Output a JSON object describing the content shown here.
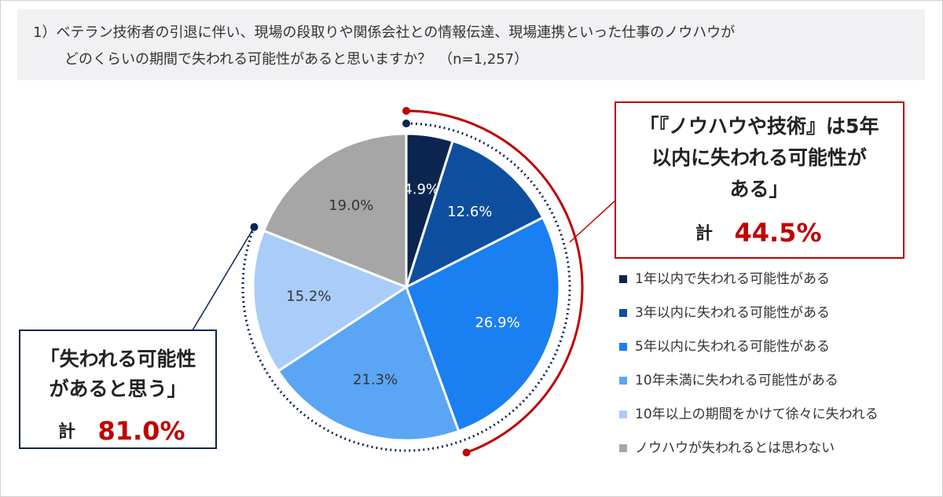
{
  "chart_data": {
    "type": "pie",
    "title": [
      "1）ベテラン技術者の引退に伴い、現場の段取りや関係会社との情報伝達、現場連携といった仕事のノウハウが",
      "どのくらいの期間で失われる可能性があると思いますか？　（n=1,257）"
    ],
    "categories": [
      "1年以内で失われる可能性がある",
      "3年以内に失われる可能性がある",
      "5年以内に失われる可能性がある",
      "10年未満に失われる可能性がある",
      "10年以上の期間をかけて徐々に失われる",
      "ノウハウが失われるとは思わない"
    ],
    "values": [
      4.9,
      12.6,
      26.9,
      21.3,
      15.2,
      19.0
    ],
    "value_labels": [
      "4.9%",
      "12.6%",
      "26.9%",
      "21.3%",
      "15.2%",
      "19.0%"
    ],
    "colors": [
      "#0b2550",
      "#0d4f9e",
      "#1a7ff0",
      "#5aa6f4",
      "#a9cdf8",
      "#a6a6a6"
    ],
    "annotations": [
      {
        "lines": [
          "「『ノウハウや技術』は5年",
          "以内に失われる可能性が",
          "ある」"
        ],
        "total_label": "計",
        "total": "44.5%",
        "color": "#c00000"
      },
      {
        "lines": [
          "「失われる可能性",
          "があると思う」"
        ],
        "total_label": "計",
        "total": "81.0%",
        "color": "#0b2550"
      }
    ]
  }
}
